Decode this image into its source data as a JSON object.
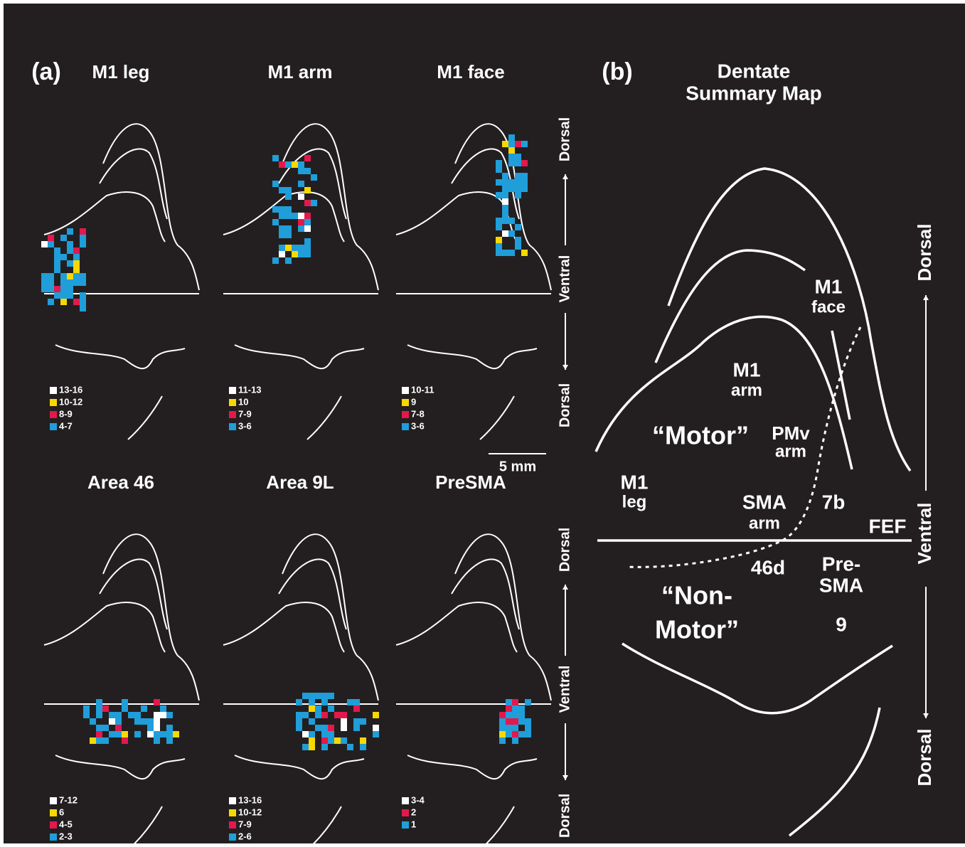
{
  "panel_a": {
    "label": "(a)",
    "scale_bar": "5 mm",
    "axis_labels": [
      "Dorsal",
      "Ventral",
      "Dorsal"
    ],
    "panels": [
      {
        "title": "M1 leg",
        "legend": [
          {
            "label": "13-16",
            "color": "#ffffff"
          },
          {
            "label": "10-12",
            "color": "#f7d800"
          },
          {
            "label": "8-9",
            "color": "#e3184d"
          },
          {
            "label": "4-7",
            "color": "#1f9ed9"
          }
        ]
      },
      {
        "title": "M1 arm",
        "legend": [
          {
            "label": "11-13",
            "color": "#ffffff"
          },
          {
            "label": "10",
            "color": "#f7d800"
          },
          {
            "label": "7-9",
            "color": "#e3184d"
          },
          {
            "label": "3-6",
            "color": "#1f9ed9"
          }
        ]
      },
      {
        "title": "M1 face",
        "legend": [
          {
            "label": "10-11",
            "color": "#ffffff"
          },
          {
            "label": "9",
            "color": "#f7d800"
          },
          {
            "label": "7-8",
            "color": "#e3184d"
          },
          {
            "label": "3-6",
            "color": "#1f9ed9"
          }
        ]
      },
      {
        "title": "Area 46",
        "legend": [
          {
            "label": "7-12",
            "color": "#ffffff"
          },
          {
            "label": "6",
            "color": "#f7d800"
          },
          {
            "label": "4-5",
            "color": "#e3184d"
          },
          {
            "label": "2-3",
            "color": "#1f9ed9"
          }
        ]
      },
      {
        "title": "Area 9L",
        "legend": [
          {
            "label": "13-16",
            "color": "#ffffff"
          },
          {
            "label": "10-12",
            "color": "#f7d800"
          },
          {
            "label": "7-9",
            "color": "#e3184d"
          },
          {
            "label": "2-6",
            "color": "#1f9ed9"
          }
        ]
      },
      {
        "title": "PreSMA",
        "legend": [
          {
            "label": "3-4",
            "color": "#ffffff"
          },
          {
            "label": "2",
            "color": "#e3184d"
          },
          {
            "label": "1",
            "color": "#1f9ed9"
          }
        ]
      }
    ]
  },
  "panel_b": {
    "label": "(b)",
    "title": [
      "Dentate",
      "Summary Map"
    ],
    "axis_labels": [
      "Dorsal",
      "Ventral",
      "Dorsal"
    ],
    "regions": [
      [
        "M1",
        "face"
      ],
      [
        "M1",
        "arm"
      ],
      [
        "“Motor”"
      ],
      [
        "PMv",
        "arm"
      ],
      [
        "M1",
        "leg"
      ],
      [
        "SMA",
        "arm"
      ],
      [
        "7b"
      ],
      [
        "FEF"
      ],
      [
        "46d"
      ],
      [
        "Pre-",
        "SMA"
      ],
      [
        "“Non-",
        "Motor”"
      ],
      [
        "9"
      ]
    ]
  }
}
